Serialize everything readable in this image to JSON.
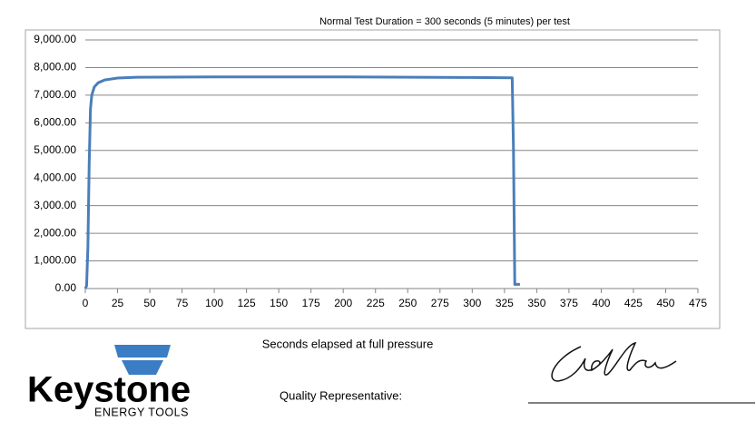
{
  "chart_data": {
    "type": "line",
    "title": "Normal Test Duration = 300 seconds (5 minutes) per test",
    "x_label": "Seconds elapsed at full pressure",
    "x": [
      0,
      1,
      2,
      3,
      4,
      5,
      7,
      10,
      15,
      25,
      40,
      100,
      200,
      300,
      331,
      332,
      333,
      337
    ],
    "series": [
      {
        "color": "#4a7ebb",
        "values": [
          0,
          100,
          1500,
          4500,
          6500,
          7000,
          7300,
          7450,
          7550,
          7620,
          7650,
          7660,
          7660,
          7640,
          7630,
          5000,
          150,
          150
        ]
      }
    ],
    "xlim": [
      0,
      475
    ],
    "xticks": [
      0,
      25,
      50,
      75,
      100,
      125,
      150,
      175,
      200,
      225,
      250,
      275,
      300,
      325,
      350,
      375,
      400,
      425,
      450,
      475
    ],
    "ylim": [
      0,
      9000
    ],
    "yticks": [
      {
        "value": 0,
        "label": "0.00"
      },
      {
        "value": 1000,
        "label": "1,000.00"
      },
      {
        "value": 2000,
        "label": "2,000.00"
      },
      {
        "value": 3000,
        "label": "3,000.00"
      },
      {
        "value": 4000,
        "label": "4,000.00"
      },
      {
        "value": 5000,
        "label": "5,000.00"
      },
      {
        "value": 6000,
        "label": "6,000.00"
      },
      {
        "value": 7000,
        "label": "7,000.00"
      },
      {
        "value": 8000,
        "label": "8,000.00"
      },
      {
        "value": 9000,
        "label": "9,000.00"
      }
    ],
    "grid": true
  },
  "logo": {
    "name": "Keystone",
    "tagline": "ENERGY TOOLS"
  },
  "signature_label": "Quality Representative:"
}
